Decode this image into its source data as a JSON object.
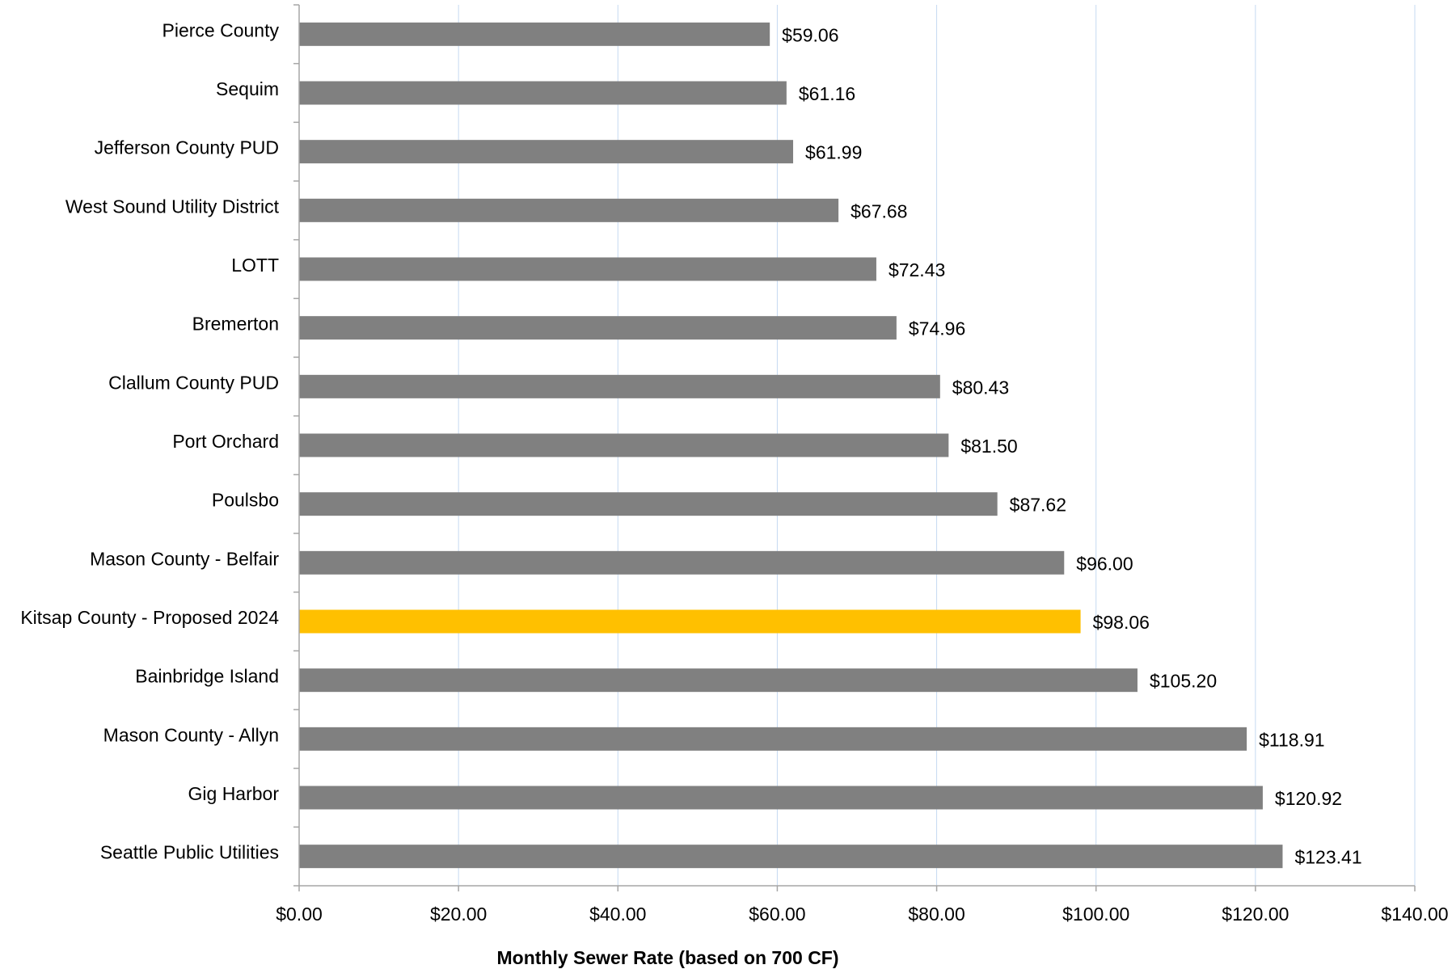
{
  "chart_data": {
    "type": "bar",
    "orientation": "horizontal",
    "categories": [
      "Pierce County",
      "Sequim",
      "Jefferson County PUD",
      "West Sound Utility District",
      "LOTT",
      "Bremerton",
      "Clallum County PUD",
      "Port Orchard",
      "Poulsbo",
      "Mason County - Belfair",
      "Kitsap County - Proposed 2024",
      "Bainbridge Island",
      "Mason County - Allyn",
      "Gig Harbor",
      "Seattle Public Utilities"
    ],
    "values": [
      59.06,
      61.16,
      61.99,
      67.68,
      72.43,
      74.96,
      80.43,
      81.5,
      87.62,
      96.0,
      98.06,
      105.2,
      118.91,
      120.92,
      123.41
    ],
    "value_labels": [
      "$59.06",
      "$61.16",
      "$61.99",
      "$67.68",
      "$72.43",
      "$74.96",
      "$80.43",
      "$81.50",
      "$87.62",
      "$96.00",
      "$98.06",
      "$105.20",
      "$118.91",
      "$120.92",
      "$123.41"
    ],
    "highlight_category": "Kitsap County - Proposed 2024",
    "colors": {
      "bar": "#808080",
      "highlight": "#FFC000",
      "grid": "#C5D9F1",
      "axis": "#A6A6A6"
    },
    "xlim": [
      0,
      140
    ],
    "xticks": [
      0,
      20,
      40,
      60,
      80,
      100,
      120,
      140
    ],
    "xtick_labels": [
      "$0.00",
      "$20.00",
      "$40.00",
      "$60.00",
      "$80.00",
      "$100.00",
      "$120.00",
      "$140.00"
    ],
    "xlabel": "Monthly Sewer Rate (based on 700 CF)",
    "ylabel": "",
    "title": "",
    "grid": true,
    "legend": false
  }
}
